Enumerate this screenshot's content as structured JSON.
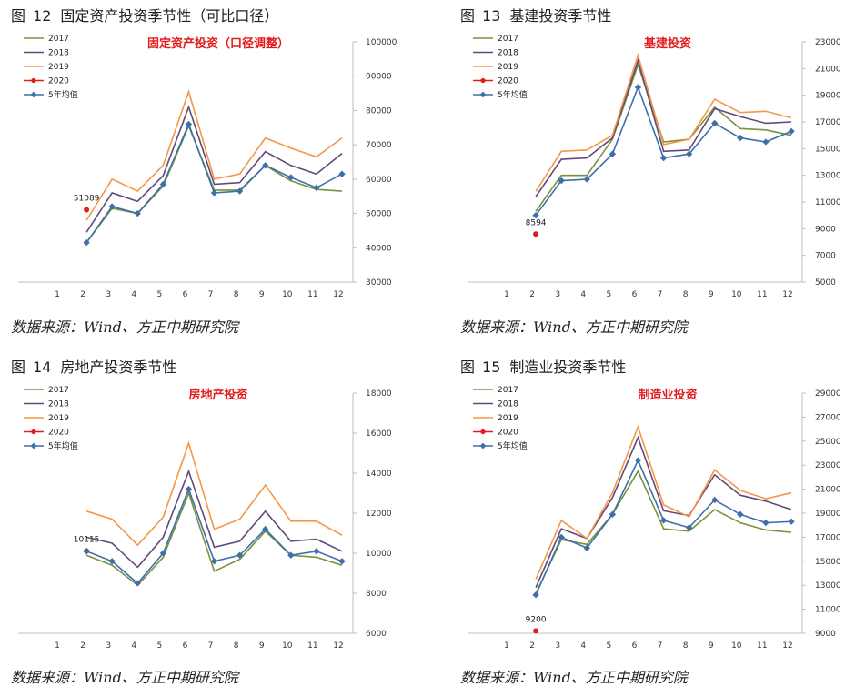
{
  "colors": {
    "2017": "#77933c",
    "2018": "#604a7b",
    "2019": "#f79646",
    "2020": "#e41a1c",
    "avg": "#3f6fa8",
    "inner_title": "#e41a1c",
    "axis": "#bfbfbf"
  },
  "legend_labels": [
    "2017",
    "2018",
    "2019",
    "2020",
    "5年均值"
  ],
  "source_text": "数据来源：Wind、方正中期研究院",
  "figures": [
    {
      "fig_label": "图",
      "fig_number": "12",
      "fig_name": "固定资产投资季节性（可比口径）"
    },
    {
      "fig_label": "图",
      "fig_number": "13",
      "fig_name": "基建投资季节性"
    },
    {
      "fig_label": "图",
      "fig_number": "14",
      "fig_name": "房地产投资季节性"
    },
    {
      "fig_label": "图",
      "fig_number": "15",
      "fig_name": "制造业投资季节性"
    }
  ],
  "chart_data": [
    {
      "type": "line",
      "title": "固定资产投资（口径调整）",
      "x": [
        1,
        2,
        3,
        4,
        5,
        6,
        7,
        8,
        9,
        10,
        11,
        12
      ],
      "ylim": [
        30000,
        100000
      ],
      "yticks": [
        30000,
        40000,
        50000,
        60000,
        70000,
        80000,
        90000,
        100000
      ],
      "series": [
        {
          "name": "2017",
          "values": [
            null,
            41500,
            51500,
            50000,
            58000,
            75500,
            56800,
            56800,
            64000,
            59500,
            57000,
            56500
          ]
        },
        {
          "name": "2018",
          "values": [
            null,
            44500,
            56000,
            53500,
            61000,
            81000,
            58500,
            59000,
            68000,
            64000,
            61500,
            67500
          ]
        },
        {
          "name": "2019",
          "values": [
            null,
            48000,
            60000,
            56500,
            64000,
            85500,
            60000,
            61500,
            72000,
            69000,
            66500,
            72000
          ]
        },
        {
          "name": "2020",
          "values": [
            null,
            51089,
            null,
            null,
            null,
            null,
            null,
            null,
            null,
            null,
            null,
            null
          ]
        },
        {
          "name": "5年均值",
          "values": [
            null,
            41500,
            52000,
            50000,
            58500,
            76000,
            56000,
            56500,
            64000,
            60500,
            57500,
            61500
          ]
        }
      ],
      "annotation": {
        "x": 2,
        "label": "51089"
      }
    },
    {
      "type": "line",
      "title": "基建投资",
      "x": [
        1,
        2,
        3,
        4,
        5,
        6,
        7,
        8,
        9,
        10,
        11,
        12
      ],
      "ylim": [
        5000,
        23000
      ],
      "yticks": [
        5000,
        7000,
        9000,
        11000,
        13000,
        15000,
        17000,
        19000,
        21000,
        23000
      ],
      "series": [
        {
          "name": "2017",
          "values": [
            null,
            10300,
            13000,
            13000,
            15700,
            21300,
            15500,
            15700,
            18100,
            16500,
            16400,
            16000
          ]
        },
        {
          "name": "2018",
          "values": [
            null,
            11400,
            14200,
            14300,
            15800,
            21600,
            14800,
            14900,
            18000,
            17400,
            16900,
            17000
          ]
        },
        {
          "name": "2019",
          "values": [
            null,
            11800,
            14800,
            14900,
            16000,
            22000,
            15300,
            15700,
            18700,
            17700,
            17800,
            17300
          ]
        },
        {
          "name": "2020",
          "values": [
            null,
            8594,
            null,
            null,
            null,
            null,
            null,
            null,
            null,
            null,
            null,
            null
          ]
        },
        {
          "name": "5年均值",
          "values": [
            null,
            10000,
            12600,
            12700,
            14600,
            19600,
            14300,
            14600,
            16900,
            15800,
            15500,
            16300
          ]
        }
      ],
      "annotation": {
        "x": 2,
        "label": "8594"
      }
    },
    {
      "type": "line",
      "title": "房地产投资",
      "x": [
        1,
        2,
        3,
        4,
        5,
        6,
        7,
        8,
        9,
        10,
        11,
        12
      ],
      "ylim": [
        6000,
        18000
      ],
      "yticks": [
        6000,
        8000,
        10000,
        12000,
        14000,
        16000,
        18000
      ],
      "series": [
        {
          "name": "2017",
          "values": [
            null,
            9900,
            9400,
            8400,
            9800,
            13000,
            9100,
            9700,
            11100,
            9900,
            9800,
            9400
          ]
        },
        {
          "name": "2018",
          "values": [
            null,
            10800,
            10500,
            9300,
            10800,
            14100,
            10300,
            10600,
            12100,
            10600,
            10700,
            10100
          ]
        },
        {
          "name": "2019",
          "values": [
            null,
            12100,
            11700,
            10400,
            11800,
            15500,
            11200,
            11700,
            13400,
            11600,
            11600,
            10900
          ]
        },
        {
          "name": "2020",
          "values": [
            null,
            10115,
            null,
            null,
            null,
            null,
            null,
            null,
            null,
            null,
            null,
            null
          ]
        },
        {
          "name": "5年均值",
          "values": [
            null,
            10100,
            9600,
            8500,
            10000,
            13200,
            9600,
            9900,
            11200,
            9900,
            10100,
            9600
          ]
        }
      ],
      "annotation": {
        "x": 2,
        "label": "10115"
      }
    },
    {
      "type": "line",
      "title": "制造业投资",
      "x": [
        1,
        2,
        3,
        4,
        5,
        6,
        7,
        8,
        9,
        10,
        11,
        12
      ],
      "ylim": [
        9000,
        29000
      ],
      "yticks": [
        9000,
        11000,
        13000,
        15000,
        17000,
        19000,
        21000,
        23000,
        25000,
        27000,
        29000
      ],
      "series": [
        {
          "name": "2017",
          "values": [
            null,
            12300,
            16800,
            16400,
            18900,
            22500,
            17700,
            17500,
            19300,
            18200,
            17600,
            17400
          ]
        },
        {
          "name": "2018",
          "values": [
            null,
            12800,
            17700,
            16900,
            20300,
            25300,
            19200,
            18800,
            22200,
            20500,
            20000,
            19300
          ]
        },
        {
          "name": "2019",
          "values": [
            null,
            13500,
            18400,
            16900,
            20700,
            26200,
            19700,
            18700,
            22600,
            20900,
            20200,
            20700
          ]
        },
        {
          "name": "2020",
          "values": [
            null,
            9200,
            null,
            null,
            null,
            null,
            null,
            null,
            null,
            null,
            null,
            null
          ]
        },
        {
          "name": "5年均值",
          "values": [
            null,
            12200,
            17000,
            16100,
            18900,
            23400,
            18400,
            17800,
            20100,
            18900,
            18200,
            18300
          ]
        }
      ],
      "annotation": {
        "x": 2,
        "label": "9200"
      }
    }
  ]
}
